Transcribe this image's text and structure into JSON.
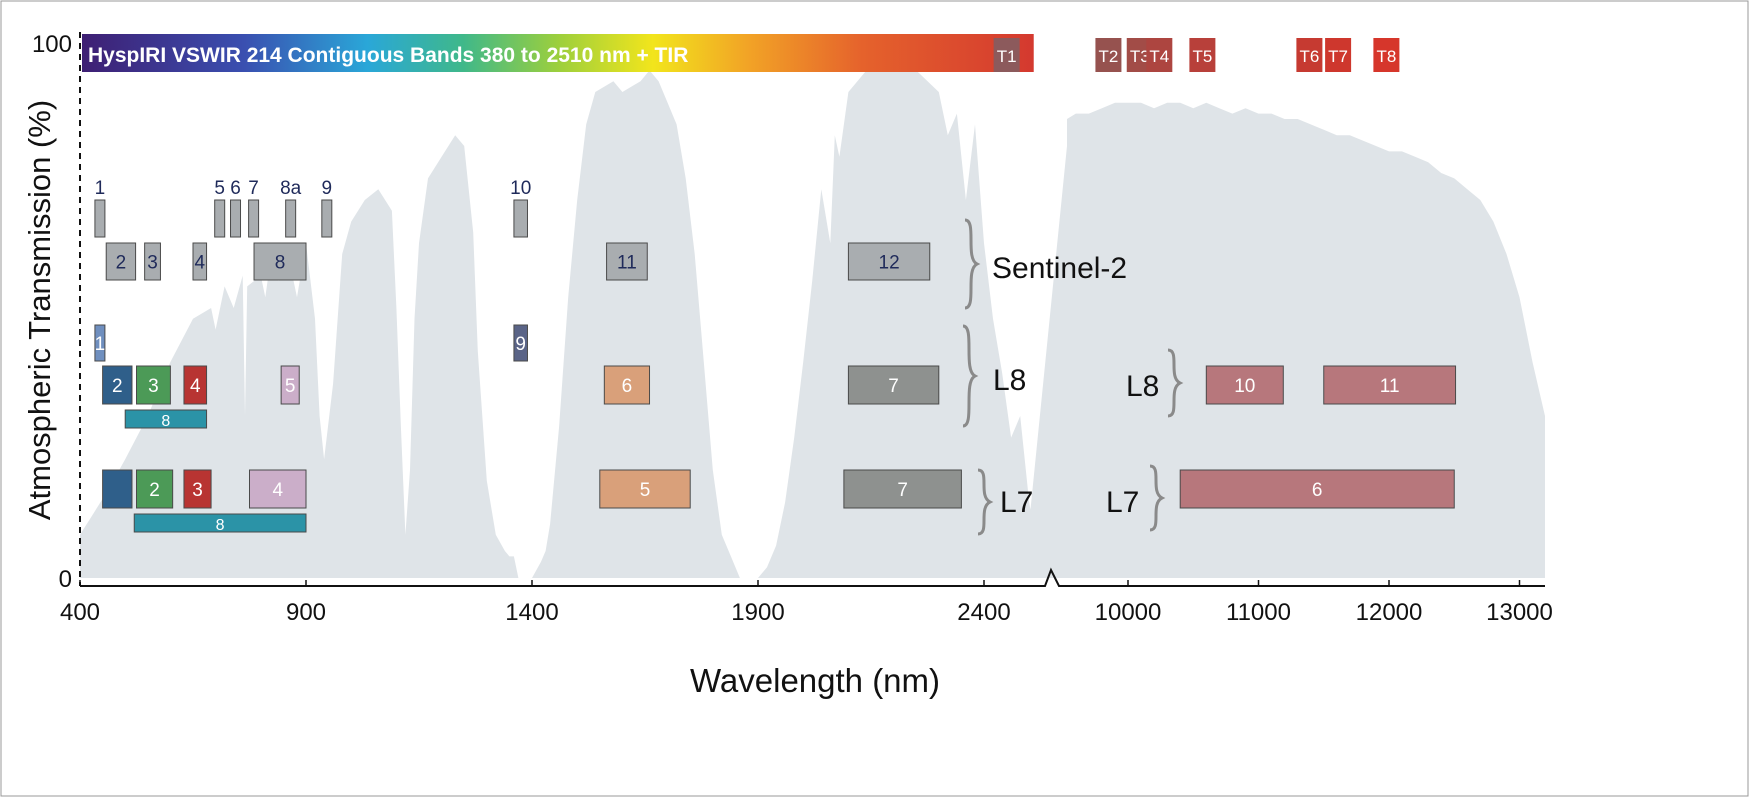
{
  "chart_data": {
    "type": "area",
    "title": "",
    "ylabel": "Atmospheric Transmission (%)",
    "xlabel": "Wavelength (nm)",
    "ylim": [
      0,
      100
    ],
    "y_ticks": [
      "0",
      "100"
    ],
    "x_ticks_vswir": [
      "400",
      "900",
      "1400",
      "1900",
      "2400"
    ],
    "x_ticks_tir": [
      "10000",
      "11000",
      "12000",
      "13000"
    ],
    "xlim_vswir": [
      400,
      2600
    ],
    "xlim_tir": [
      9200,
      13200
    ],
    "hyspiri": {
      "label": "HyspIRI VSWIR 214 Contiguous Bands 380 to 2510 nm + TIR",
      "range_nm": [
        400,
        2510
      ],
      "tir_bands": [
        {
          "label": "T1",
          "center": 9070,
          "color": "#8c5a5c"
        },
        {
          "label": "T2",
          "center": 9850,
          "color": "#96524f"
        },
        {
          "label": "T3",
          "center": 10090,
          "color": "#a24c47"
        },
        {
          "label": "T4",
          "center": 10240,
          "color": "#ad4540"
        },
        {
          "label": "T5",
          "center": 10570,
          "color": "#b8403a"
        },
        {
          "label": "T6",
          "center": 11390,
          "color": "#c63a31"
        },
        {
          "label": "T7",
          "center": 11610,
          "color": "#ce372d"
        },
        {
          "label": "T8",
          "center": 11980,
          "color": "#d6362b"
        }
      ]
    },
    "transmission_vswir": {
      "x": [
        400,
        430,
        460,
        500,
        550,
        600,
        650,
        690,
        700,
        720,
        740,
        760,
        765,
        770,
        800,
        810,
        820,
        840,
        860,
        880,
        900,
        920,
        930,
        940,
        960,
        980,
        1000,
        1030,
        1060,
        1090,
        1100,
        1110,
        1120,
        1130,
        1140,
        1150,
        1170,
        1200,
        1230,
        1250,
        1260,
        1270,
        1280,
        1300,
        1320,
        1340,
        1350,
        1360,
        1370,
        1380,
        1400,
        1420,
        1430,
        1440,
        1460,
        1480,
        1500,
        1520,
        1540,
        1560,
        1580,
        1600,
        1620,
        1640,
        1660,
        1680,
        1700,
        1720,
        1740,
        1760,
        1780,
        1800,
        1820,
        1840,
        1860,
        1880,
        1900,
        1920,
        1940,
        1960,
        1980,
        2000,
        2020,
        2040,
        2060,
        2070,
        2080,
        2100,
        2120,
        2150,
        2200,
        2250,
        2300,
        2320,
        2340,
        2360,
        2380,
        2400,
        2420,
        2440,
        2460,
        2480,
        2500,
        2520,
        2540,
        2560,
        2590
      ],
      "y": [
        8,
        12,
        16,
        22,
        30,
        40,
        48,
        50,
        46,
        54,
        50,
        56,
        30,
        54,
        56,
        52,
        58,
        55,
        60,
        52,
        62,
        48,
        30,
        22,
        36,
        60,
        66,
        70,
        72,
        68,
        50,
        28,
        8,
        20,
        48,
        62,
        74,
        78,
        82,
        80,
        72,
        64,
        42,
        18,
        8,
        5,
        4,
        4,
        0,
        0,
        0,
        3,
        5,
        10,
        28,
        52,
        70,
        84,
        90,
        91,
        92,
        90,
        91,
        92,
        94,
        92,
        88,
        84,
        74,
        60,
        40,
        20,
        8,
        4,
        0,
        0,
        0,
        2,
        6,
        14,
        26,
        40,
        55,
        72,
        62,
        82,
        78,
        90,
        92,
        95,
        96,
        94,
        90,
        82,
        86,
        70,
        84,
        62,
        48,
        38,
        26,
        30,
        14,
        8,
        6,
        3,
        2
      ],
      "color": "#dfe4e8"
    },
    "transmission_tir": {
      "x": [
        9200,
        9300,
        9400,
        9500,
        9600,
        9700,
        9800,
        9900,
        10000,
        10100,
        10200,
        10300,
        10400,
        10500,
        10600,
        10700,
        10800,
        10900,
        11000,
        11100,
        11200,
        11300,
        11400,
        11500,
        11600,
        11700,
        11800,
        11900,
        12000,
        12100,
        12200,
        12300,
        12400,
        12500,
        12600,
        12700,
        12800,
        12900,
        13000,
        13100,
        13200
      ],
      "y": [
        80,
        82,
        84,
        85,
        86,
        86,
        87,
        88,
        88,
        88,
        87,
        88,
        88,
        87,
        88,
        87,
        86,
        87,
        86,
        86,
        85,
        85,
        84,
        83,
        82,
        82,
        81,
        80,
        79,
        79,
        78,
        77,
        75,
        74,
        72,
        70,
        66,
        60,
        52,
        40,
        30
      ],
      "color": "#dfe4e8"
    },
    "sensors": [
      {
        "name": "Sentinel-2",
        "bands": [
          {
            "label": "1",
            "start": 433,
            "end": 453,
            "row": 0,
            "color": "#a9adb0"
          },
          {
            "label": "2",
            "start": 458,
            "end": 523,
            "row": 1,
            "color": "#a9adb0"
          },
          {
            "label": "3",
            "start": 543,
            "end": 578,
            "row": 1,
            "color": "#a9adb0"
          },
          {
            "label": "4",
            "start": 650,
            "end": 680,
            "row": 1,
            "color": "#a9adb0"
          },
          {
            "label": "5",
            "start": 698,
            "end": 713,
            "row": 0,
            "color": "#a9adb0"
          },
          {
            "label": "6",
            "start": 733,
            "end": 748,
            "row": 0,
            "color": "#a9adb0"
          },
          {
            "label": "7",
            "start": 773,
            "end": 793,
            "row": 0,
            "color": "#a9adb0"
          },
          {
            "label": "8",
            "start": 785,
            "end": 900,
            "row": 1,
            "color": "#a9adb0"
          },
          {
            "label": "8a",
            "start": 855,
            "end": 875,
            "row": 0,
            "color": "#a9adb0"
          },
          {
            "label": "9",
            "start": 935,
            "end": 955,
            "row": 0,
            "color": "#a9adb0"
          },
          {
            "label": "10",
            "start": 1360,
            "end": 1390,
            "row": 0,
            "color": "#a9adb0"
          },
          {
            "label": "11",
            "start": 1565,
            "end": 1655,
            "row": 1,
            "color": "#a9adb0"
          },
          {
            "label": "12",
            "start": 2100,
            "end": 2280,
            "row": 1,
            "color": "#a9adb0"
          }
        ]
      },
      {
        "name": "L8",
        "bands": [
          {
            "label": "1",
            "start": 433,
            "end": 453,
            "row": 0,
            "color": "#6f8fbf"
          },
          {
            "label": "9",
            "start": 1360,
            "end": 1390,
            "row": 0,
            "color": "#5a6487"
          },
          {
            "label": "2",
            "start": 450,
            "end": 515,
            "row": 1,
            "color": "#2f5f8a"
          },
          {
            "label": "3",
            "start": 525,
            "end": 600,
            "row": 1,
            "color": "#4c9a57"
          },
          {
            "label": "4",
            "start": 630,
            "end": 680,
            "row": 1,
            "color": "#b83432"
          },
          {
            "label": "5",
            "start": 845,
            "end": 885,
            "row": 1,
            "color": "#cbaec9"
          },
          {
            "label": "6",
            "start": 1560,
            "end": 1660,
            "row": 1,
            "color": "#d9a07a"
          },
          {
            "label": "7",
            "start": 2100,
            "end": 2300,
            "row": 1,
            "color": "#8e918f"
          },
          {
            "label": "8",
            "start": 500,
            "end": 680,
            "row": 2,
            "color": "#2b93a7"
          }
        ],
        "tir_bands": [
          {
            "label": "10",
            "start": 10600,
            "end": 11190,
            "color": "#b7777c"
          },
          {
            "label": "11",
            "start": 11500,
            "end": 12510,
            "color": "#b7777c"
          }
        ]
      },
      {
        "name": "L7",
        "bands": [
          {
            "label": "",
            "start": 450,
            "end": 515,
            "row": 1,
            "color": "#2f5f8a"
          },
          {
            "label": "2",
            "start": 525,
            "end": 605,
            "row": 1,
            "color": "#4c9a57"
          },
          {
            "label": "3",
            "start": 630,
            "end": 690,
            "row": 1,
            "color": "#b83432"
          },
          {
            "label": "4",
            "start": 775,
            "end": 900,
            "row": 1,
            "color": "#cbaec9"
          },
          {
            "label": "5",
            "start": 1550,
            "end": 1750,
            "row": 1,
            "color": "#d9a07a"
          },
          {
            "label": "7",
            "start": 2090,
            "end": 2350,
            "row": 1,
            "color": "#8e918f"
          },
          {
            "label": "8",
            "start": 520,
            "end": 900,
            "row": 2,
            "color": "#2b93a7"
          }
        ],
        "tir_bands": [
          {
            "label": "6",
            "start": 10400,
            "end": 12500,
            "color": "#b7777c"
          }
        ]
      }
    ],
    "sensor_labels": {
      "sentinel": "Sentinel-2",
      "l8_vswir": "L8",
      "l8_tir": "L8",
      "l7_vswir": "L7",
      "l7_tir": "L7"
    }
  }
}
